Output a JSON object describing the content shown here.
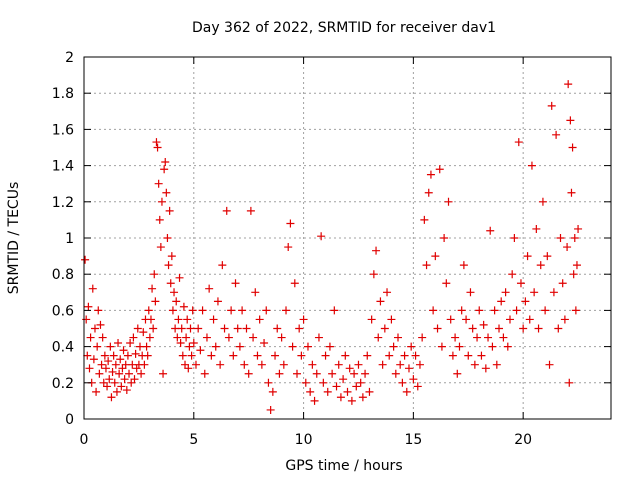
{
  "chart_data": {
    "type": "scatter",
    "title": "Day 362 of 2022, SRMTID for receiver dav1",
    "xlabel": "GPS time / hours",
    "ylabel": "SRMTID / TECUs",
    "xlim": [
      0,
      24
    ],
    "ylim": [
      0,
      2
    ],
    "xticks": [
      0,
      5,
      10,
      15,
      20
    ],
    "yticks": [
      0,
      0.2,
      0.4,
      0.6,
      0.8,
      1,
      1.2,
      1.4,
      1.6,
      1.8,
      2
    ],
    "ytick_labels": [
      "0",
      "0.2",
      "0.4",
      "0.6",
      "0.8",
      "1",
      "1.2",
      "1.4",
      "1.6",
      "1.8",
      "2"
    ],
    "grid": true,
    "marker": "plus",
    "color": "#e00000",
    "series": [
      {
        "name": "SRMTID",
        "points": [
          [
            0.05,
            0.88
          ],
          [
            0.1,
            0.55
          ],
          [
            0.15,
            0.35
          ],
          [
            0.2,
            0.62
          ],
          [
            0.25,
            0.28
          ],
          [
            0.3,
            0.45
          ],
          [
            0.35,
            0.2
          ],
          [
            0.4,
            0.72
          ],
          [
            0.45,
            0.33
          ],
          [
            0.5,
            0.5
          ],
          [
            0.55,
            0.15
          ],
          [
            0.6,
            0.4
          ],
          [
            0.65,
            0.6
          ],
          [
            0.7,
            0.25
          ],
          [
            0.75,
            0.52
          ],
          [
            0.8,
            0.3
          ],
          [
            0.85,
            0.45
          ],
          [
            0.9,
            0.2
          ],
          [
            0.95,
            0.35
          ],
          [
            1.0,
            0.28
          ],
          [
            1.05,
            0.18
          ],
          [
            1.1,
            0.32
          ],
          [
            1.15,
            0.22
          ],
          [
            1.2,
            0.4
          ],
          [
            1.25,
            0.12
          ],
          [
            1.3,
            0.26
          ],
          [
            1.35,
            0.35
          ],
          [
            1.4,
            0.2
          ],
          [
            1.45,
            0.3
          ],
          [
            1.5,
            0.15
          ],
          [
            1.55,
            0.42
          ],
          [
            1.6,
            0.25
          ],
          [
            1.65,
            0.33
          ],
          [
            1.7,
            0.18
          ],
          [
            1.75,
            0.28
          ],
          [
            1.8,
            0.38
          ],
          [
            1.85,
            0.22
          ],
          [
            1.9,
            0.3
          ],
          [
            1.95,
            0.16
          ],
          [
            2.0,
            0.35
          ],
          [
            2.05,
            0.25
          ],
          [
            2.1,
            0.42
          ],
          [
            2.15,
            0.2
          ],
          [
            2.2,
            0.3
          ],
          [
            2.25,
            0.45
          ],
          [
            2.3,
            0.22
          ],
          [
            2.35,
            0.36
          ],
          [
            2.4,
            0.28
          ],
          [
            2.45,
            0.5
          ],
          [
            2.5,
            0.3
          ],
          [
            2.55,
            0.4
          ],
          [
            2.6,
            0.25
          ],
          [
            2.65,
            0.35
          ],
          [
            2.7,
            0.48
          ],
          [
            2.75,
            0.3
          ],
          [
            2.8,
            0.55
          ],
          [
            2.85,
            0.4
          ],
          [
            2.9,
            0.35
          ],
          [
            2.95,
            0.6
          ],
          [
            3.0,
            0.45
          ],
          [
            3.05,
            0.55
          ],
          [
            3.1,
            0.72
          ],
          [
            3.15,
            0.5
          ],
          [
            3.2,
            0.8
          ],
          [
            3.25,
            0.65
          ],
          [
            3.3,
            1.53
          ],
          [
            3.35,
            1.5
          ],
          [
            3.4,
            1.3
          ],
          [
            3.45,
            1.1
          ],
          [
            3.5,
            0.95
          ],
          [
            3.55,
            1.2
          ],
          [
            3.6,
            0.25
          ],
          [
            3.65,
            1.38
          ],
          [
            3.7,
            1.42
          ],
          [
            3.75,
            1.25
          ],
          [
            3.8,
            1.0
          ],
          [
            3.85,
            0.85
          ],
          [
            3.9,
            1.15
          ],
          [
            3.95,
            0.75
          ],
          [
            4.0,
            0.9
          ],
          [
            4.05,
            0.6
          ],
          [
            4.1,
            0.7
          ],
          [
            4.15,
            0.5
          ],
          [
            4.2,
            0.65
          ],
          [
            4.25,
            0.45
          ],
          [
            4.3,
            0.55
          ],
          [
            4.35,
            0.78
          ],
          [
            4.4,
            0.42
          ],
          [
            4.45,
            0.5
          ],
          [
            4.5,
            0.35
          ],
          [
            4.55,
            0.62
          ],
          [
            4.6,
            0.3
          ],
          [
            4.65,
            0.45
          ],
          [
            4.7,
            0.55
          ],
          [
            4.75,
            0.28
          ],
          [
            4.8,
            0.4
          ],
          [
            4.85,
            0.5
          ],
          [
            4.9,
            0.35
          ],
          [
            4.95,
            0.6
          ],
          [
            5.0,
            0.42
          ],
          [
            5.1,
            0.3
          ],
          [
            5.2,
            0.5
          ],
          [
            5.3,
            0.38
          ],
          [
            5.4,
            0.6
          ],
          [
            5.5,
            0.25
          ],
          [
            5.6,
            0.45
          ],
          [
            5.7,
            0.72
          ],
          [
            5.8,
            0.35
          ],
          [
            5.9,
            0.55
          ],
          [
            6.0,
            0.4
          ],
          [
            6.1,
            0.65
          ],
          [
            6.2,
            0.3
          ],
          [
            6.3,
            0.85
          ],
          [
            6.4,
            0.5
          ],
          [
            6.5,
            1.15
          ],
          [
            6.6,
            0.45
          ],
          [
            6.7,
            0.6
          ],
          [
            6.8,
            0.35
          ],
          [
            6.9,
            0.75
          ],
          [
            7.0,
            0.5
          ],
          [
            7.1,
            0.4
          ],
          [
            7.2,
            0.6
          ],
          [
            7.3,
            0.3
          ],
          [
            7.4,
            0.5
          ],
          [
            7.5,
            0.25
          ],
          [
            7.6,
            1.15
          ],
          [
            7.7,
            0.45
          ],
          [
            7.8,
            0.7
          ],
          [
            7.9,
            0.35
          ],
          [
            8.0,
            0.55
          ],
          [
            8.1,
            0.3
          ],
          [
            8.2,
            0.42
          ],
          [
            8.3,
            0.6
          ],
          [
            8.4,
            0.2
          ],
          [
            8.5,
            0.05
          ],
          [
            8.6,
            0.15
          ],
          [
            8.7,
            0.35
          ],
          [
            8.8,
            0.5
          ],
          [
            8.9,
            0.25
          ],
          [
            9.0,
            0.45
          ],
          [
            9.1,
            0.3
          ],
          [
            9.2,
            0.6
          ],
          [
            9.3,
            0.95
          ],
          [
            9.4,
            1.08
          ],
          [
            9.5,
            0.4
          ],
          [
            9.6,
            0.75
          ],
          [
            9.7,
            0.25
          ],
          [
            9.8,
            0.5
          ],
          [
            9.9,
            0.35
          ],
          [
            10.0,
            0.55
          ],
          [
            10.1,
            0.2
          ],
          [
            10.2,
            0.4
          ],
          [
            10.3,
            0.15
          ],
          [
            10.4,
            0.3
          ],
          [
            10.5,
            0.1
          ],
          [
            10.6,
            0.25
          ],
          [
            10.7,
            0.45
          ],
          [
            10.8,
            1.01
          ],
          [
            10.9,
            0.2
          ],
          [
            11.0,
            0.35
          ],
          [
            11.1,
            0.15
          ],
          [
            11.2,
            0.4
          ],
          [
            11.3,
            0.25
          ],
          [
            11.4,
            0.6
          ],
          [
            11.5,
            0.18
          ],
          [
            11.6,
            0.3
          ],
          [
            11.7,
            0.12
          ],
          [
            11.8,
            0.22
          ],
          [
            11.9,
            0.35
          ],
          [
            12.0,
            0.15
          ],
          [
            12.1,
            0.28
          ],
          [
            12.2,
            0.1
          ],
          [
            12.3,
            0.25
          ],
          [
            12.4,
            0.18
          ],
          [
            12.5,
            0.3
          ],
          [
            12.6,
            0.2
          ],
          [
            12.7,
            0.12
          ],
          [
            12.8,
            0.25
          ],
          [
            12.9,
            0.35
          ],
          [
            13.0,
            0.15
          ],
          [
            13.1,
            0.55
          ],
          [
            13.2,
            0.8
          ],
          [
            13.3,
            0.93
          ],
          [
            13.4,
            0.45
          ],
          [
            13.5,
            0.65
          ],
          [
            13.6,
            0.3
          ],
          [
            13.7,
            0.5
          ],
          [
            13.8,
            0.7
          ],
          [
            13.9,
            0.35
          ],
          [
            14.0,
            0.55
          ],
          [
            14.1,
            0.4
          ],
          [
            14.2,
            0.25
          ],
          [
            14.3,
            0.45
          ],
          [
            14.4,
            0.3
          ],
          [
            14.5,
            0.2
          ],
          [
            14.6,
            0.35
          ],
          [
            14.7,
            0.15
          ],
          [
            14.8,
            0.28
          ],
          [
            14.9,
            0.4
          ],
          [
            15.0,
            0.22
          ],
          [
            15.1,
            0.35
          ],
          [
            15.2,
            0.18
          ],
          [
            15.3,
            0.3
          ],
          [
            15.4,
            0.45
          ],
          [
            15.5,
            1.1
          ],
          [
            15.6,
            0.85
          ],
          [
            15.7,
            1.25
          ],
          [
            15.8,
            1.35
          ],
          [
            15.9,
            0.6
          ],
          [
            16.0,
            0.9
          ],
          [
            16.1,
            0.5
          ],
          [
            16.2,
            1.38
          ],
          [
            16.3,
            0.4
          ],
          [
            16.4,
            1.0
          ],
          [
            16.5,
            0.75
          ],
          [
            16.6,
            1.2
          ],
          [
            16.7,
            0.55
          ],
          [
            16.8,
            0.35
          ],
          [
            16.9,
            0.45
          ],
          [
            17.0,
            0.25
          ],
          [
            17.1,
            0.4
          ],
          [
            17.2,
            0.6
          ],
          [
            17.3,
            0.85
          ],
          [
            17.4,
            0.55
          ],
          [
            17.5,
            0.35
          ],
          [
            17.6,
            0.7
          ],
          [
            17.7,
            0.5
          ],
          [
            17.8,
            0.3
          ],
          [
            17.9,
            0.45
          ],
          [
            18.0,
            0.6
          ],
          [
            18.1,
            0.35
          ],
          [
            18.2,
            0.52
          ],
          [
            18.3,
            0.28
          ],
          [
            18.4,
            0.45
          ],
          [
            18.5,
            1.04
          ],
          [
            18.6,
            0.4
          ],
          [
            18.7,
            0.6
          ],
          [
            18.8,
            0.3
          ],
          [
            18.9,
            0.5
          ],
          [
            19.0,
            0.65
          ],
          [
            19.1,
            0.45
          ],
          [
            19.2,
            0.7
          ],
          [
            19.3,
            0.4
          ],
          [
            19.4,
            0.55
          ],
          [
            19.5,
            0.8
          ],
          [
            19.6,
            1.0
          ],
          [
            19.7,
            0.6
          ],
          [
            19.8,
            1.53
          ],
          [
            19.9,
            0.75
          ],
          [
            20.0,
            0.5
          ],
          [
            20.1,
            0.65
          ],
          [
            20.2,
            0.9
          ],
          [
            20.3,
            0.55
          ],
          [
            20.4,
            1.4
          ],
          [
            20.5,
            0.7
          ],
          [
            20.6,
            1.05
          ],
          [
            20.7,
            0.5
          ],
          [
            20.8,
            0.85
          ],
          [
            20.9,
            1.2
          ],
          [
            21.0,
            0.6
          ],
          [
            21.1,
            0.9
          ],
          [
            21.2,
            0.3
          ],
          [
            21.3,
            1.73
          ],
          [
            21.4,
            0.7
          ],
          [
            21.5,
            1.57
          ],
          [
            21.6,
            0.5
          ],
          [
            21.7,
            1.0
          ],
          [
            21.8,
            0.75
          ],
          [
            21.9,
            0.55
          ],
          [
            22.0,
            0.95
          ],
          [
            22.05,
            1.85
          ],
          [
            22.1,
            0.2
          ],
          [
            22.15,
            1.65
          ],
          [
            22.2,
            1.25
          ],
          [
            22.25,
            1.5
          ],
          [
            22.3,
            0.8
          ],
          [
            22.35,
            1.0
          ],
          [
            22.4,
            0.6
          ],
          [
            22.45,
            0.85
          ],
          [
            22.5,
            1.05
          ]
        ]
      }
    ]
  }
}
